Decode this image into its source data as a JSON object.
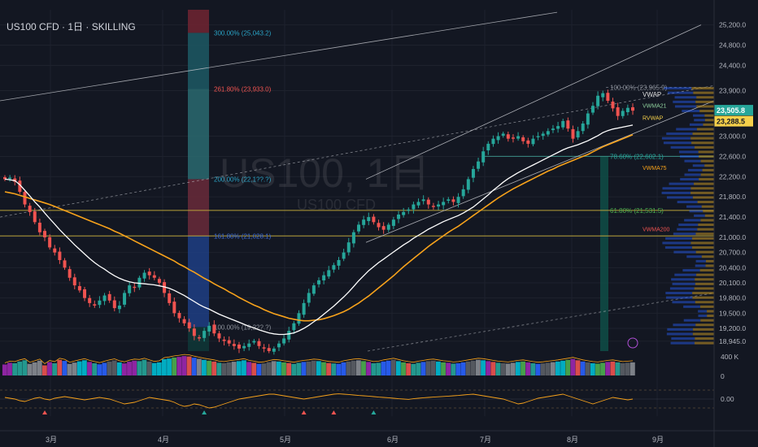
{
  "header": {
    "title": "US100 CFD · 1日 · SKILLING"
  },
  "watermark": {
    "main": "US100, 1日",
    "sub": "US100 CFD"
  },
  "colors": {
    "bg": "#131722",
    "grid": "#1e222d",
    "up": "#26a69a",
    "down": "#ef5350",
    "vwma21": "#ffffff",
    "vwma75": "#f7a21b",
    "last_price": "#26a69a",
    "rvwap": "#f5d04a",
    "channel": "#c7c9cf",
    "fib_0786": "#26a69a",
    "fib_0618": "#4caf50",
    "fib_1618": "#3b6bd6",
    "fib_2618": "#ef5350",
    "fib_300": "#2aa3c5",
    "osc_line": "#f7a21b"
  },
  "chart_data": {
    "type": "candlestick",
    "y_axis": {
      "ticks": [
        "25,200.0",
        "24,800.0",
        "24,400.0",
        "23,900.0",
        "23,000.0",
        "22,600.0",
        "22,200.0",
        "21,800.0",
        "21,400.0",
        "21,000.0",
        "20,700.0",
        "20,400.0",
        "20,100.0",
        "19,800.0",
        "19,500.0",
        "19,200.0",
        "18,945.0"
      ],
      "tick_values": [
        25200,
        24800,
        24400,
        23900,
        23000,
        22600,
        22200,
        21800,
        21400,
        21000,
        20700,
        20400,
        20100,
        19800,
        19500,
        19200,
        18945
      ],
      "range": [
        18750,
        25500
      ]
    },
    "x_axis": {
      "ticks": [
        "3月",
        "4月",
        "5月",
        "6月",
        "7月",
        "8月",
        "9月"
      ]
    },
    "price_labels": {
      "last": "23,505.8",
      "rvwap_value": "23,288.5"
    },
    "indicator_labels": {
      "vwap": "VWAP",
      "vwma21": "VWMA21",
      "rvwap": "RVWAP",
      "vwma75": "VWMA75",
      "vwma200": "VWMA200"
    },
    "fib_levels": [
      {
        "label": "300.00% (25,043.2)",
        "price": 25043.2,
        "color_key": "fib_300"
      },
      {
        "label": "261.80% (23,933.0)",
        "price": 23933.0,
        "color_key": "fib_2618"
      },
      {
        "label": "200.00% (22,1??.?)",
        "price": 22150,
        "color_key": "fib_300"
      },
      {
        "label": "161.80% (21,028.1)",
        "price": 21028.1,
        "color_key": "fib_1618"
      },
      {
        "label": "100.00% (19,22?.?)",
        "price": 19225,
        "color_key": "fib_1618"
      },
      {
        "label": "100.00% (23,965.9)",
        "price": 23965.9,
        "color_key": "channel"
      },
      {
        "label": "78.60% (22,602.1)",
        "price": 22602.1,
        "color_key": "fib_0786"
      },
      {
        "label": "61.80% (21,531.5)",
        "price": 21531.5,
        "color_key": "fib_0618"
      }
    ],
    "closes": [
      22150,
      22180,
      22100,
      21900,
      21650,
      21500,
      21300,
      21100,
      21000,
      20800,
      20700,
      20550,
      20400,
      20200,
      20050,
      19950,
      19800,
      19700,
      19650,
      19750,
      19850,
      19750,
      19600,
      19650,
      19900,
      20050,
      20000,
      20200,
      20300,
      20250,
      20200,
      20100,
      19900,
      19700,
      19500,
      19400,
      19300,
      19200,
      19050,
      19000,
      19150,
      19250,
      19100,
      19000,
      18950,
      18900,
      18850,
      18800,
      18850,
      18900,
      18950,
      18850,
      18800,
      18750,
      18800,
      18900,
      19000,
      19150,
      19300,
      19500,
      19700,
      19900,
      20050,
      20150,
      20250,
      20350,
      20450,
      20550,
      20700,
      20900,
      21100,
      21250,
      21350,
      21400,
      21300,
      21200,
      21150,
      21250,
      21350,
      21450,
      21500,
      21550,
      21650,
      21700,
      21750,
      21650,
      21600,
      21650,
      21700,
      21750,
      21700,
      21800,
      21950,
      22150,
      22350,
      22500,
      22700,
      22850,
      22950,
      23000,
      23050,
      22950,
      22950,
      23000,
      22900,
      22850,
      22950,
      23000,
      23050,
      23100,
      23150,
      23200,
      23300,
      23150,
      22950,
      23100,
      23250,
      23450,
      23600,
      23800,
      23850,
      23700,
      23550,
      23400,
      23500,
      23560,
      23505
    ],
    "vwma21": [
      22150,
      22140,
      22120,
      22040,
      21930,
      21820,
      21700,
      21600,
      21480,
      21370,
      21260,
      21150,
      21050,
      20950,
      20850,
      20760,
      20670,
      20580,
      20500,
      20430,
      20370,
      20300,
      20240,
      20190,
      20150,
      20120,
      20100,
      20090,
      20080,
      20070,
      20060,
      20040,
      20020,
      19990,
      19950,
      19900,
      19850,
      19790,
      19730,
      19670,
      19620,
      19580,
      19530,
      19480,
      19440,
      19400,
      19360,
      19320,
      19280,
      19240,
      19210,
      19170,
      19140,
      19110,
      19090,
      19080,
      19080,
      19090,
      19110,
      19150,
      19200,
      19260,
      19330,
      19400,
      19480,
      19560,
      19640,
      19730,
      19820,
      19920,
      20030,
      20140,
      20240,
      20340,
      20420,
      20500,
      20570,
      20640,
      20710,
      20780,
      20850,
      20910,
      20980,
      21040,
      21100,
      21160,
      21210,
      21260,
      21310,
      21350,
      21390,
      21430,
      21480,
      21540,
      21600,
      21680,
      21760,
      21840,
      21930,
      22010,
      22090,
      22160,
      22220,
      22280,
      22330,
      22380,
      22430,
      22480,
      22530,
      22580,
      22630,
      22680,
      22730,
      22770,
      22800,
      22830,
      22870,
      22910,
      22960,
      23010,
      23070,
      23110,
      23140,
      23160,
      23180,
      23200,
      23220
    ],
    "vwma75": [
      21900,
      21880,
      21860,
      21830,
      21800,
      21770,
      21740,
      21710,
      21680,
      21650,
      21610,
      21570,
      21530,
      21490,
      21450,
      21410,
      21370,
      21330,
      21290,
      21250,
      21210,
      21170,
      21120,
      21080,
      21030,
      20980,
      20930,
      20880,
      20830,
      20780,
      20730,
      20680,
      20630,
      20580,
      20530,
      20470,
      20420,
      20360,
      20310,
      20250,
      20190,
      20140,
      20080,
      20030,
      19980,
      19920,
      19870,
      19810,
      19760,
      19710,
      19660,
      19620,
      19570,
      19530,
      19490,
      19460,
      19430,
      19400,
      19380,
      19360,
      19350,
      19350,
      19360,
      19370,
      19390,
      19420,
      19450,
      19490,
      19530,
      19580,
      19640,
      19700,
      19770,
      19840,
      19920,
      20000,
      20080,
      20160,
      20240,
      20330,
      20420,
      20500,
      20580,
      20660,
      20740,
      20820,
      20890,
      20960,
      21030,
      21100,
      21160,
      21220,
      21290,
      21360,
      21430,
      21500,
      21570,
      21640,
      21710,
      21780,
      21840,
      21900,
      21960,
      22010,
      22060,
      22110,
      22160,
      22210,
      22260,
      22310,
      22350,
      22400,
      22440,
      22480,
      22520,
      22560,
      22600,
      22640,
      22690,
      22740,
      22790,
      22830,
      22870,
      22910,
      22950,
      22990,
      23030
    ],
    "volume": [
      52,
      60,
      58,
      66,
      72,
      55,
      62,
      70,
      48,
      63,
      58,
      74,
      69,
      55,
      61,
      67,
      72,
      64,
      58,
      53,
      60,
      66,
      71,
      62,
      57,
      65,
      70,
      68,
      74,
      66,
      59,
      62,
      77,
      80,
      85,
      88,
      92,
      90,
      84,
      79,
      74,
      70,
      66,
      60,
      58,
      62,
      65,
      68,
      72,
      64,
      60,
      55,
      57,
      63,
      68,
      66,
      62,
      59,
      55,
      60,
      64,
      66,
      70,
      68,
      63,
      59,
      57,
      55,
      62,
      66,
      70,
      72,
      68,
      64,
      58,
      60,
      66,
      70,
      74,
      68,
      62,
      58,
      55,
      60,
      64,
      68,
      70,
      66,
      62,
      60,
      56,
      58,
      62,
      66,
      70,
      74,
      72,
      68,
      64,
      60,
      58,
      56,
      60,
      64,
      66,
      62,
      58,
      55,
      57,
      60,
      63,
      66,
      70,
      74,
      78,
      72,
      66,
      62,
      58,
      56,
      60,
      64,
      66,
      62,
      58,
      60,
      62
    ],
    "volume_axis": [
      "400 K",
      "0"
    ],
    "oscillator": {
      "value_label": "0.00",
      "values": [
        0.1,
        0.05,
        0.0,
        -0.1,
        -0.15,
        -0.05,
        0.05,
        0.1,
        0.0,
        -0.05,
        0.05,
        0.1,
        0.15,
        0.1,
        0.05,
        0.0,
        -0.05,
        0.0,
        0.05,
        0.1,
        0.05,
        0.0,
        -0.1,
        -0.2,
        -0.3,
        -0.25,
        -0.2,
        -0.1,
        0.0,
        0.1,
        0.05,
        0.0,
        -0.05,
        -0.1,
        -0.2,
        -0.35,
        -0.45,
        -0.4,
        -0.3,
        -0.35,
        -0.45,
        -0.55,
        -0.5,
        -0.4,
        -0.3,
        -0.2,
        -0.1,
        0.0,
        0.05,
        0.1,
        0.15,
        0.2,
        0.25,
        0.3,
        0.3,
        0.25,
        0.2,
        0.15,
        0.1,
        0.05,
        0.0,
        0.05,
        0.1,
        0.15,
        0.2,
        0.25,
        0.3,
        0.32,
        0.3,
        0.28,
        0.25,
        0.22,
        0.2,
        0.18,
        0.15,
        0.12,
        0.1,
        0.08,
        0.05,
        0.02,
        0.0,
        -0.02,
        0.02,
        0.05,
        0.08,
        0.1,
        0.12,
        0.14,
        0.16,
        0.18,
        0.2,
        0.22,
        0.25,
        0.28,
        0.3,
        0.25,
        0.2,
        0.15,
        0.1,
        0.05,
        0.0,
        -0.1,
        -0.2,
        -0.3,
        -0.25,
        -0.15,
        -0.05,
        0.05,
        0.1,
        0.15,
        0.2,
        0.25,
        0.3,
        0.2,
        0.1,
        0.0,
        -0.1,
        -0.2,
        -0.3,
        -0.2,
        -0.1,
        0.0,
        0.1,
        0.05,
        0.0,
        -0.05,
        0.0
      ]
    }
  }
}
